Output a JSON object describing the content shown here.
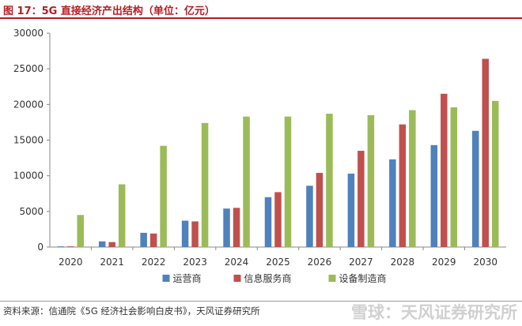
{
  "title": "图 17：5G 直接经济产出结构（单位：亿元）",
  "source": "资料来源：信通院《5G 经济社会影响白皮书》，天风证券研究所",
  "watermark": "雪球：天风证券研究所",
  "chart_data": {
    "type": "bar",
    "categories": [
      "2020",
      "2021",
      "2022",
      "2023",
      "2024",
      "2025",
      "2026",
      "2027",
      "2028",
      "2029",
      "2030"
    ],
    "series": [
      {
        "name": "运营商",
        "color": "#4f81bd",
        "values": [
          100,
          800,
          2000,
          3700,
          5400,
          7000,
          8600,
          10300,
          12300,
          14300,
          16300
        ]
      },
      {
        "name": "信息服务商",
        "color": "#c0504d",
        "values": [
          100,
          700,
          1900,
          3600,
          5500,
          7700,
          10400,
          13500,
          17200,
          21500,
          26400
        ]
      },
      {
        "name": "设备制造商",
        "color": "#9bbb59",
        "values": [
          4500,
          8800,
          14200,
          17400,
          18300,
          18300,
          18700,
          18500,
          19200,
          19600,
          20500
        ]
      }
    ],
    "yticks": [
      0,
      5000,
      10000,
      15000,
      20000,
      25000,
      30000
    ],
    "ylim": [
      0,
      30000
    ],
    "legend_position": "bottom",
    "grid": false
  }
}
